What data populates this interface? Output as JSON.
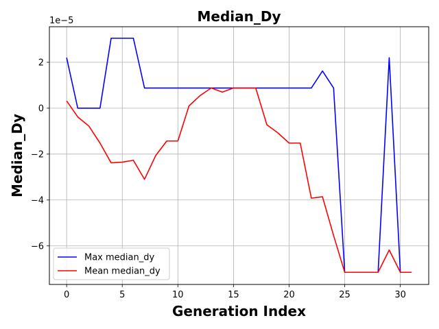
{
  "chart_data": {
    "type": "line",
    "title": "Median_Dy",
    "xlabel": "Generation Index",
    "ylabel": "Median_Dy",
    "offset_text": "1e−5",
    "grid": true,
    "legend_position": "lower-left",
    "xlim": [
      -1.55,
      32.55
    ],
    "ylim": [
      -7.68,
      3.55
    ],
    "x_ticks": [
      0,
      5,
      10,
      15,
      20,
      25,
      30
    ],
    "x_tick_labels": [
      "0",
      "5",
      "10",
      "15",
      "20",
      "25",
      "30"
    ],
    "y_ticks": [
      2,
      0,
      -2,
      -4,
      -6
    ],
    "y_tick_labels": [
      "2",
      "0",
      "−2",
      "−4",
      "−6"
    ],
    "x": [
      0,
      1,
      2,
      3,
      4,
      5,
      6,
      7,
      8,
      9,
      10,
      11,
      12,
      13,
      14,
      15,
      16,
      17,
      18,
      19,
      20,
      21,
      22,
      23,
      24,
      25,
      26,
      27,
      28,
      29,
      30,
      31
    ],
    "series": [
      {
        "name": "Max median_dy",
        "color": "#0000ff",
        "values": [
          2.2,
          0,
          0,
          0,
          3.05,
          3.05,
          3.05,
          0.88,
          0.88,
          0.88,
          0.88,
          0.88,
          0.88,
          0.88,
          0.88,
          0.88,
          0.88,
          0.88,
          0.88,
          0.88,
          0.88,
          0.88,
          0.88,
          1.62,
          0.88,
          -7.15,
          -7.15,
          -7.15,
          -7.15,
          2.2,
          -7.15,
          -7.15
        ]
      },
      {
        "name": "Mean median_dy",
        "color": "#ff0000",
        "values": [
          0.32,
          -0.38,
          -0.78,
          -1.52,
          -2.38,
          -2.35,
          -2.27,
          -3.1,
          -2.07,
          -1.43,
          -1.43,
          0.1,
          0.55,
          0.88,
          0.7,
          0.88,
          0.88,
          0.88,
          -0.72,
          -1.08,
          -1.52,
          -1.52,
          -3.92,
          -3.86,
          -5.55,
          -7.15,
          -7.15,
          -7.15,
          -7.15,
          -6.18,
          -7.15,
          -7.15
        ]
      }
    ]
  }
}
